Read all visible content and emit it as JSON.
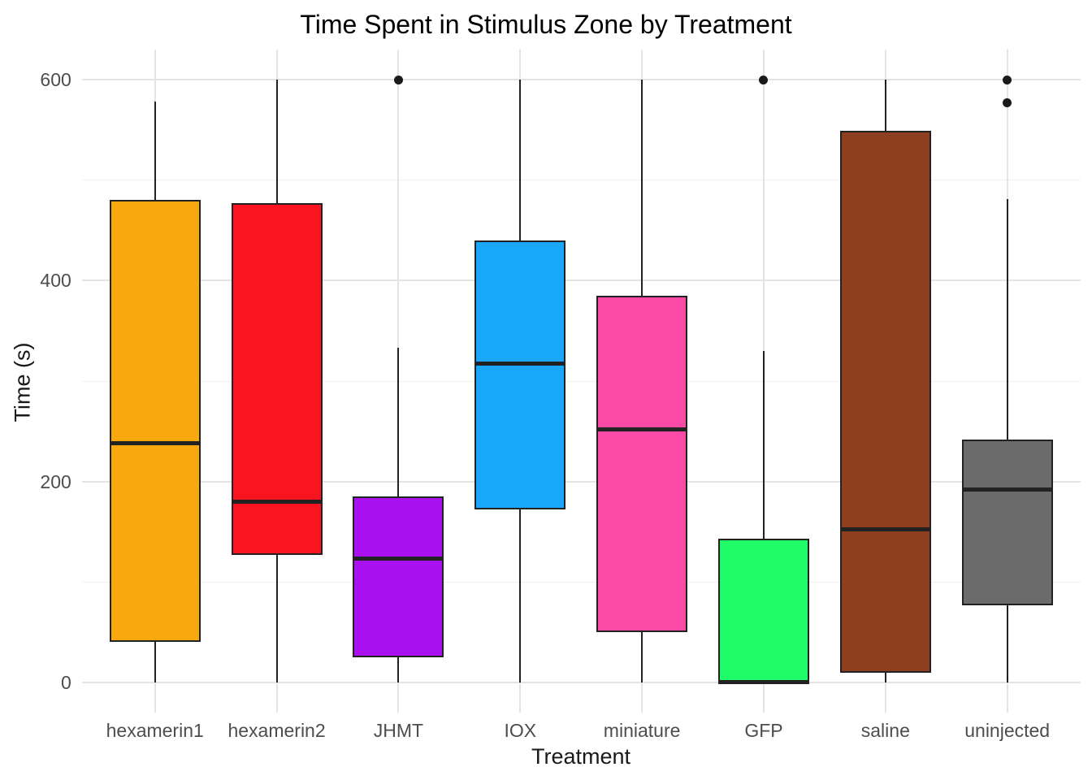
{
  "chart_data": {
    "type": "boxplot",
    "title": "Time Spent in Stimulus Zone by Treatment",
    "xlabel": "Treatment",
    "ylabel": "Time (s)",
    "ylim": [
      -30,
      630
    ],
    "yticks": [
      0,
      200,
      400,
      600
    ],
    "yticks_minor": [
      100,
      300,
      500
    ],
    "grid": "on",
    "legend": "none",
    "categories": [
      "hexamerin1",
      "hexamerin2",
      "JHMT",
      "IOX",
      "miniature",
      "GFP",
      "saline",
      "uninjected"
    ],
    "series": [
      {
        "name": "hexamerin1",
        "color": "#F9A90D",
        "whisker_low": 0,
        "q1": 40,
        "median": 238,
        "q3": 480,
        "whisker_high": 578,
        "outliers": []
      },
      {
        "name": "hexamerin2",
        "color": "#FA141F",
        "whisker_low": 0,
        "q1": 127,
        "median": 180,
        "q3": 477,
        "whisker_high": 600,
        "outliers": []
      },
      {
        "name": "JHMT",
        "color": "#A911F0",
        "whisker_low": 0,
        "q1": 25,
        "median": 123,
        "q3": 185,
        "whisker_high": 333,
        "outliers": [
          600
        ]
      },
      {
        "name": "IOX",
        "color": "#19A7FA",
        "whisker_low": 0,
        "q1": 172,
        "median": 317,
        "q3": 440,
        "whisker_high": 600,
        "outliers": []
      },
      {
        "name": "miniature",
        "color": "#FB4AA5",
        "whisker_low": 0,
        "q1": 50,
        "median": 252,
        "q3": 385,
        "whisker_high": 600,
        "outliers": []
      },
      {
        "name": "GFP",
        "color": "#21FB68",
        "whisker_low": 0,
        "q1": 0,
        "median": 0,
        "q3": 143,
        "whisker_high": 330,
        "outliers": [
          600
        ]
      },
      {
        "name": "saline",
        "color": "#8E3F1F",
        "whisker_low": 0,
        "q1": 10,
        "median": 152,
        "q3": 549,
        "whisker_high": 600,
        "outliers": []
      },
      {
        "name": "uninjected",
        "color": "#6B6B6B",
        "whisker_low": 0,
        "q1": 77,
        "median": 192,
        "q3": 242,
        "whisker_high": 481,
        "outliers": [
          600,
          577
        ]
      }
    ]
  },
  "style": {
    "background": "#FFFFFF",
    "grid_major": "#E4E4E4",
    "grid_minor": "#F0F0F0",
    "box_border": "#222222",
    "median_color": "#222222",
    "whisker_color": "#222222",
    "outlier_color": "#1A1A1A",
    "title_color": "#000000",
    "axis_title_color": "#1A1A1A",
    "tick_label_color": "#4D4D4D"
  }
}
